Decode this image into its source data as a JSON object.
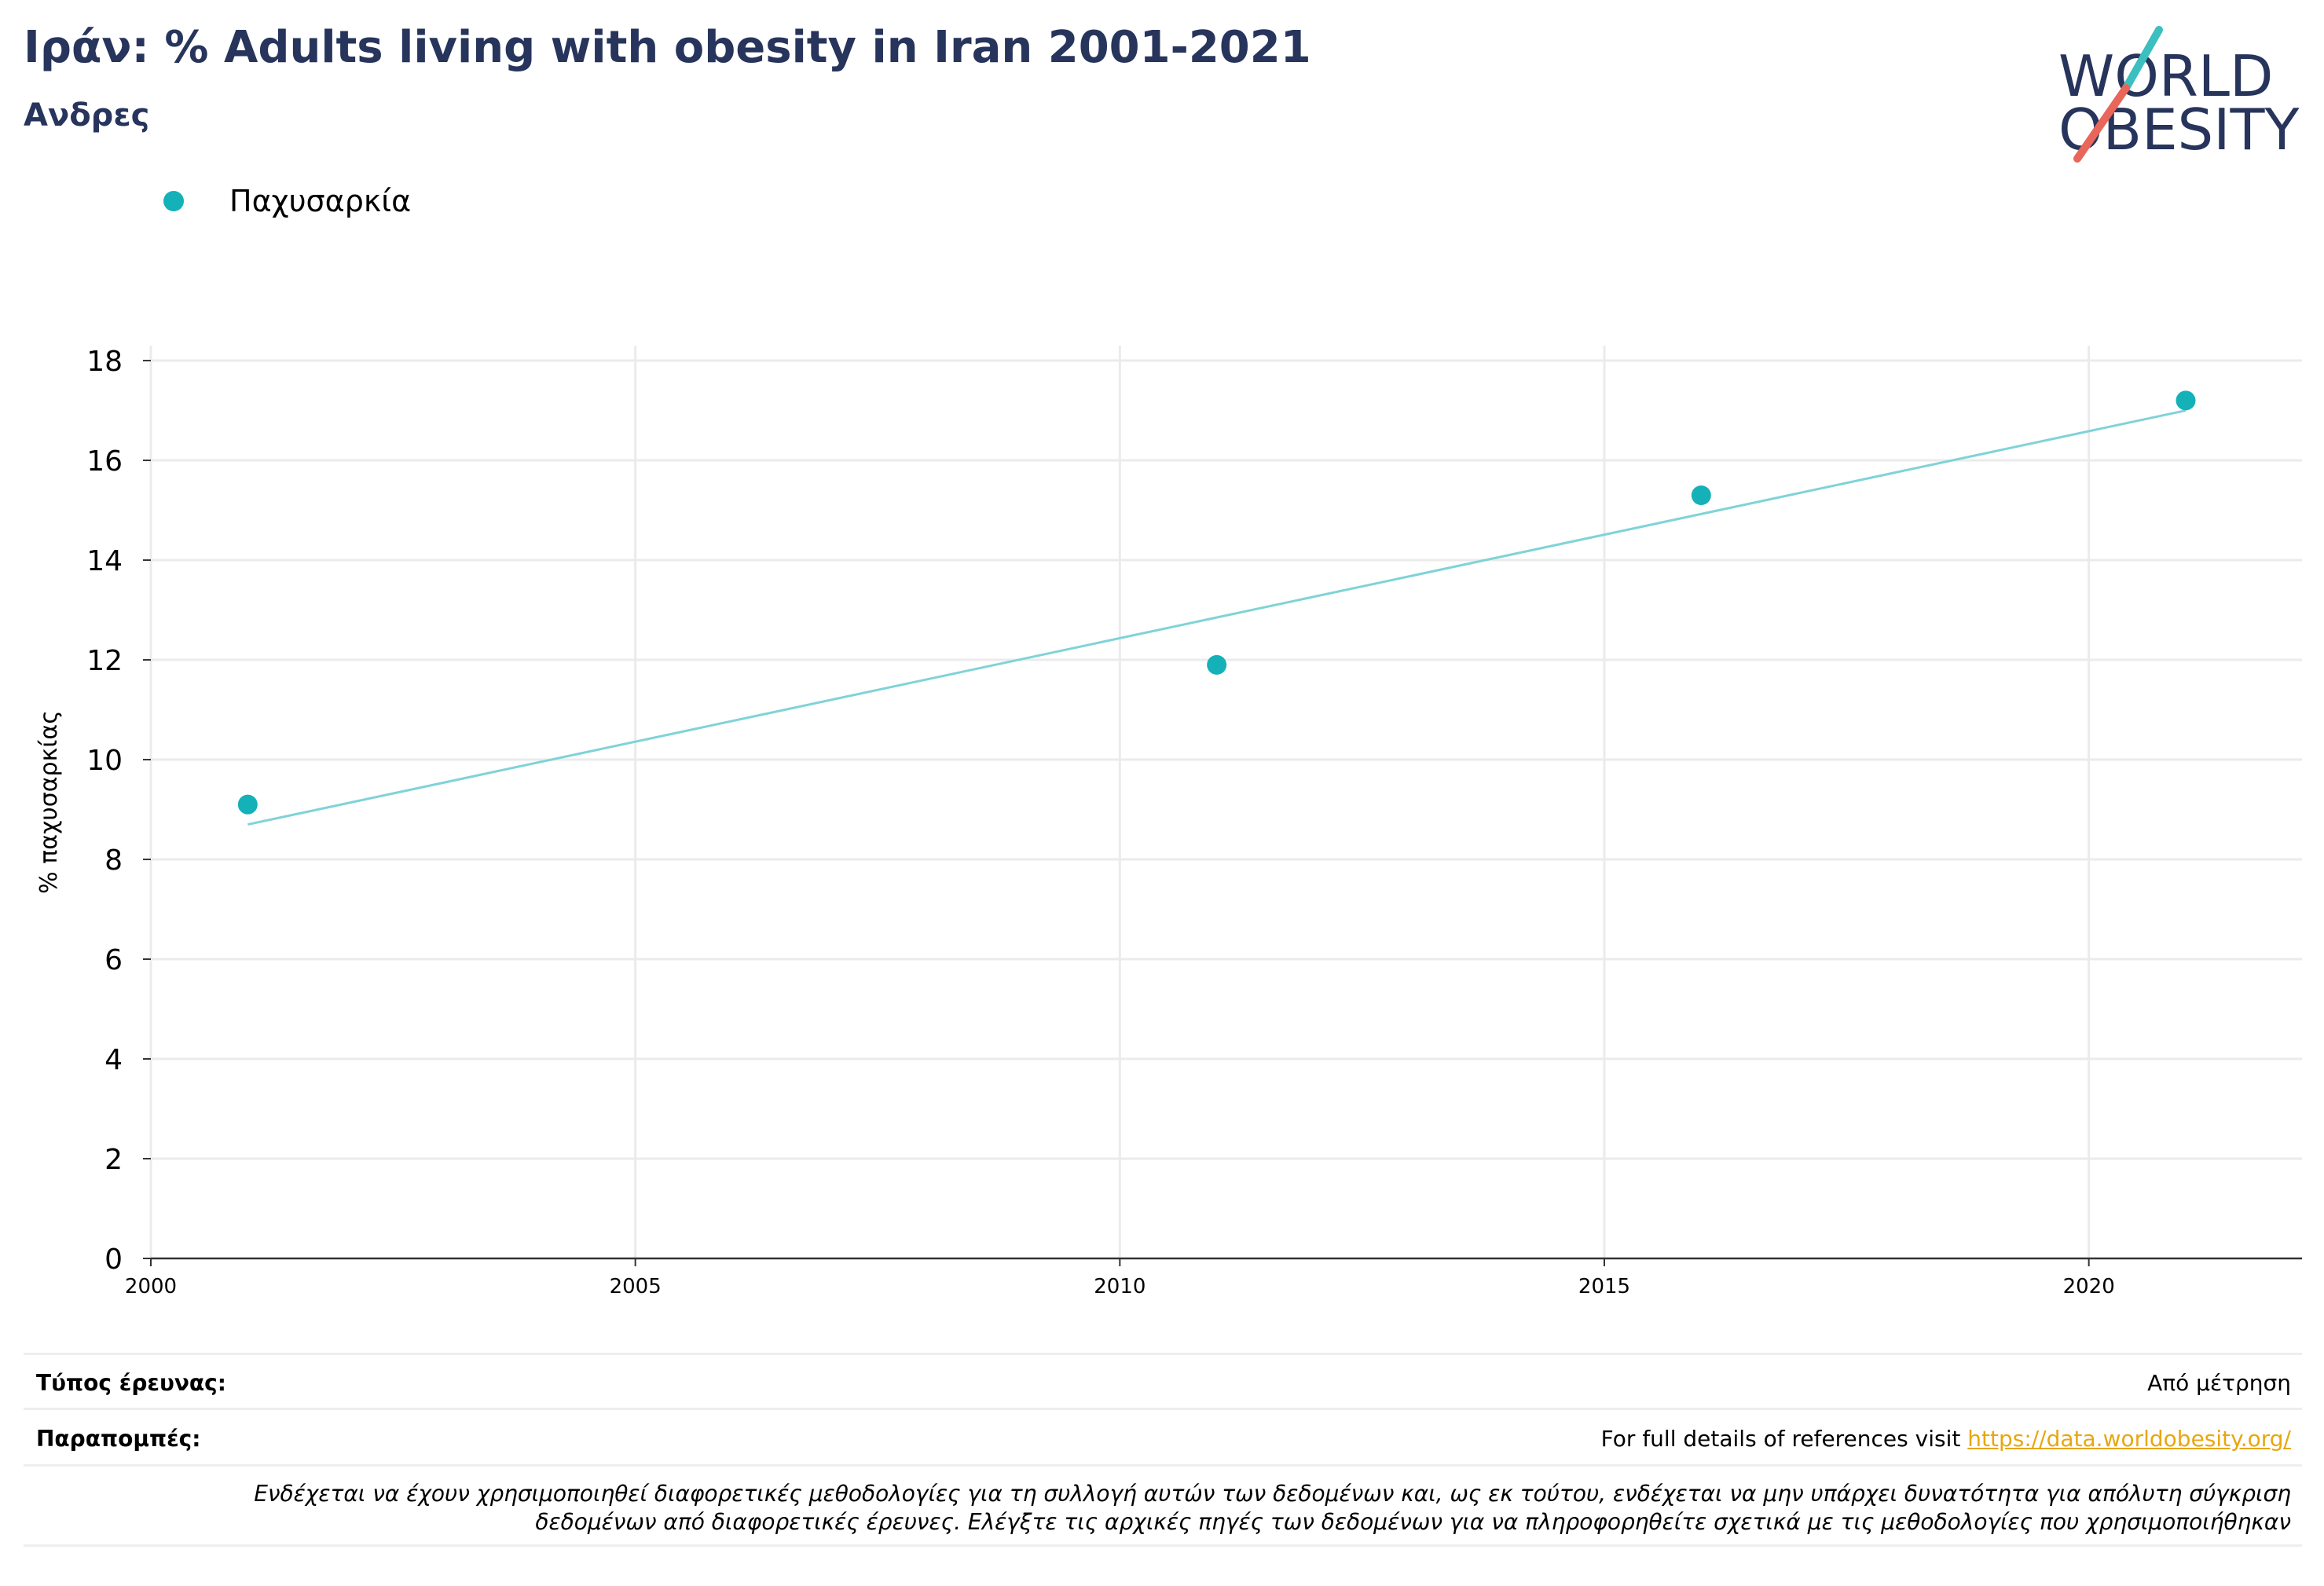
{
  "header": {
    "title": "Ιράν: % Adults living with obesity in Iran 2001-2021",
    "subtitle": "Ανδρες"
  },
  "logo": {
    "line1": "WORLD",
    "line2": "OBESITY"
  },
  "legend": {
    "label": "Παχυσαρκία",
    "color": "#14b1b8"
  },
  "chart_data": {
    "type": "scatter",
    "title": "Ιράν: % Adults living with obesity in Iran 2001-2021",
    "subtitle": "Ανδρες",
    "ylabel": "% παχυσαρκίας",
    "xlabel": "",
    "xlim": [
      2000,
      2022.2
    ],
    "ylim": [
      0,
      18.3
    ],
    "xticks": [
      2000,
      2005,
      2010,
      2015,
      2020
    ],
    "yticks": [
      0,
      2,
      4,
      6,
      8,
      10,
      12,
      14,
      16,
      18
    ],
    "grid": true,
    "legend_position": "top-left",
    "series": [
      {
        "name": "Παχυσαρκία",
        "color": "#14b1b8",
        "x": [
          2001,
          2011,
          2016,
          2021
        ],
        "y": [
          9.1,
          11.9,
          15.3,
          17.2
        ]
      }
    ],
    "trendline": {
      "color": "#7fd3d8",
      "x": [
        2001,
        2021
      ],
      "y": [
        8.7,
        17.0
      ]
    }
  },
  "footer": {
    "survey_type_label": "Τύπος έρευνας:",
    "survey_type_value": "Από μέτρηση",
    "references_label": "Παραπομπές:",
    "references_text": "For full details of references visit ",
    "references_link": "https://data.worldobesity.org/",
    "note_line1": "Ενδέχεται να έχουν χρησιμοποιηθεί διαφορετικές μεθοδολογίες για τη συλλογή αυτών των δεδομένων και, ως εκ τούτου, ενδέχεται να μην υπάρχει δυνατότητα για απόλυτη σύγκριση",
    "note_line2": "δεδομένων από διαφορετικές έρευνες. Ελέγξτε τις αρχικές πηγές των δεδομένων για να πληροφορηθείτε σχετικά με τις μεθοδολογίες που χρησιμοποιήθηκαν"
  }
}
